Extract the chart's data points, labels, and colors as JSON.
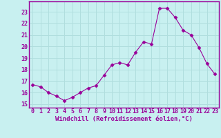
{
  "x": [
    0,
    1,
    2,
    3,
    4,
    5,
    6,
    7,
    8,
    9,
    10,
    11,
    12,
    13,
    14,
    15,
    16,
    17,
    18,
    19,
    20,
    21,
    22,
    23
  ],
  "y": [
    16.7,
    16.5,
    16.0,
    15.7,
    15.3,
    15.6,
    16.0,
    16.4,
    16.6,
    17.5,
    18.4,
    18.6,
    18.4,
    19.5,
    20.4,
    20.2,
    23.3,
    23.3,
    22.5,
    21.4,
    21.0,
    19.9,
    18.5,
    17.6
  ],
  "line_color": "#990099",
  "marker": "D",
  "marker_size": 2.5,
  "background_color": "#c8f0f0",
  "grid_color": "#b0dede",
  "ylabel_ticks": [
    15,
    16,
    17,
    18,
    19,
    20,
    21,
    22,
    23
  ],
  "ylim": [
    14.7,
    23.9
  ],
  "xlim": [
    -0.5,
    23.5
  ],
  "xlabel": "Windchill (Refroidissement éolien,°C)",
  "tick_color": "#990099",
  "spine_color": "#990099",
  "font": "monospace",
  "tick_fontsize": 6.0,
  "xlabel_fontsize": 6.5
}
